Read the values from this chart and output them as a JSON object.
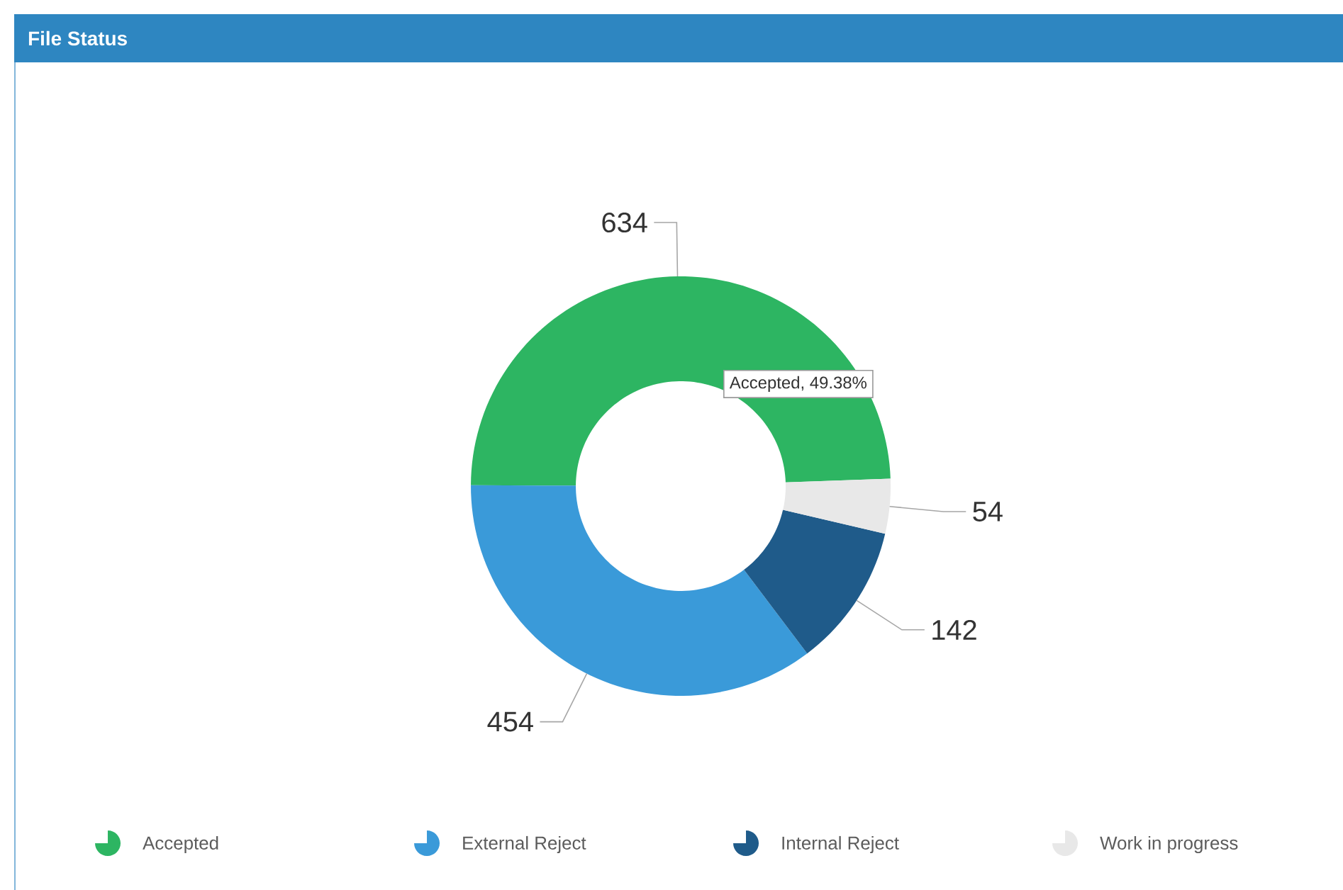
{
  "chart_data": {
    "type": "donut",
    "title": "File Status",
    "categories": [
      "Accepted",
      "External Reject",
      "Internal Reject",
      "Work in progress"
    ],
    "values": [
      634,
      454,
      142,
      54
    ],
    "colors": [
      "#2db562",
      "#3a9ad9",
      "#1f5b8a",
      "#e8e8e8"
    ],
    "data_labels": true,
    "legend": "bottom",
    "annotations": [
      "Accepted, 49.38%"
    ]
  }
}
